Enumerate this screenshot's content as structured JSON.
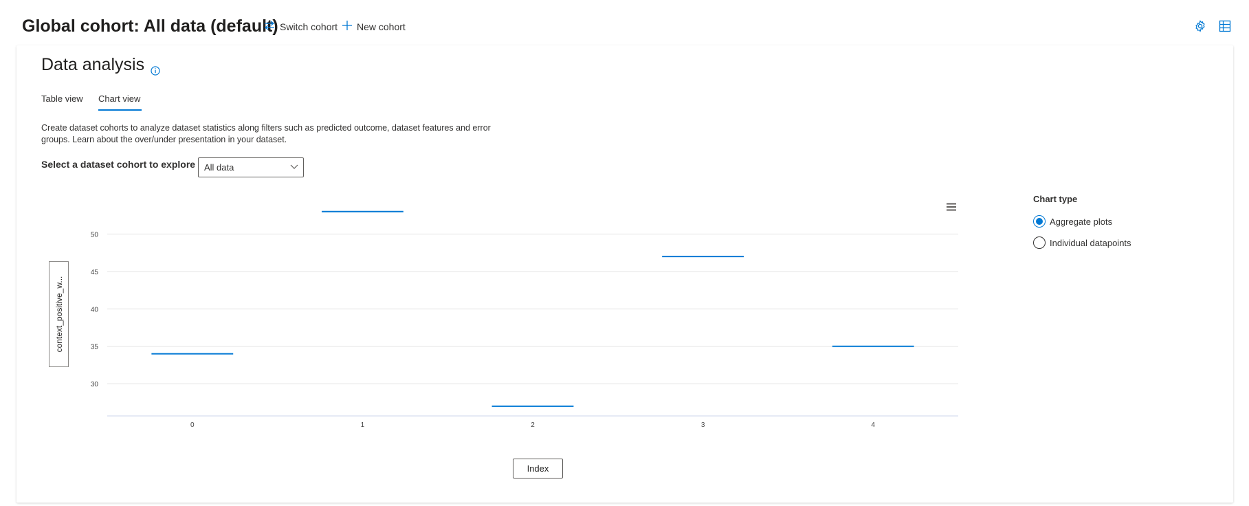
{
  "header": {
    "cohort_title": "Global cohort: All data (default)",
    "switch_cohort_label": "Switch cohort",
    "new_cohort_label": "New cohort"
  },
  "section": {
    "title": "Data analysis",
    "tabs": [
      {
        "label": "Table view",
        "selected": false
      },
      {
        "label": "Chart view",
        "selected": true
      }
    ],
    "description": "Create dataset cohorts to analyze dataset statistics along filters such as predicted outcome, dataset features and error groups. Learn about the over/under presentation in your dataset.",
    "select_label": "Select a dataset cohort to explore",
    "dropdown_value": "All data"
  },
  "chart_type_panel": {
    "label": "Chart type",
    "options": [
      {
        "label": "Aggregate plots",
        "checked": true
      },
      {
        "label": "Individual datapoints",
        "checked": false
      }
    ]
  },
  "colors": {
    "accent": "#0078d4",
    "grid": "#e5e5e5"
  },
  "chart_data": {
    "type": "line",
    "x": [
      0,
      1,
      2,
      3,
      4
    ],
    "values": [
      34,
      53,
      27,
      47,
      35
    ],
    "ylabel": "context_positive_w...",
    "xlabel": "Index",
    "yticks": [
      30,
      35,
      40,
      45,
      50
    ],
    "xticks": [
      "0",
      "1",
      "2",
      "3",
      "4"
    ],
    "ylim": [
      25.7,
      55
    ],
    "grid": true
  }
}
